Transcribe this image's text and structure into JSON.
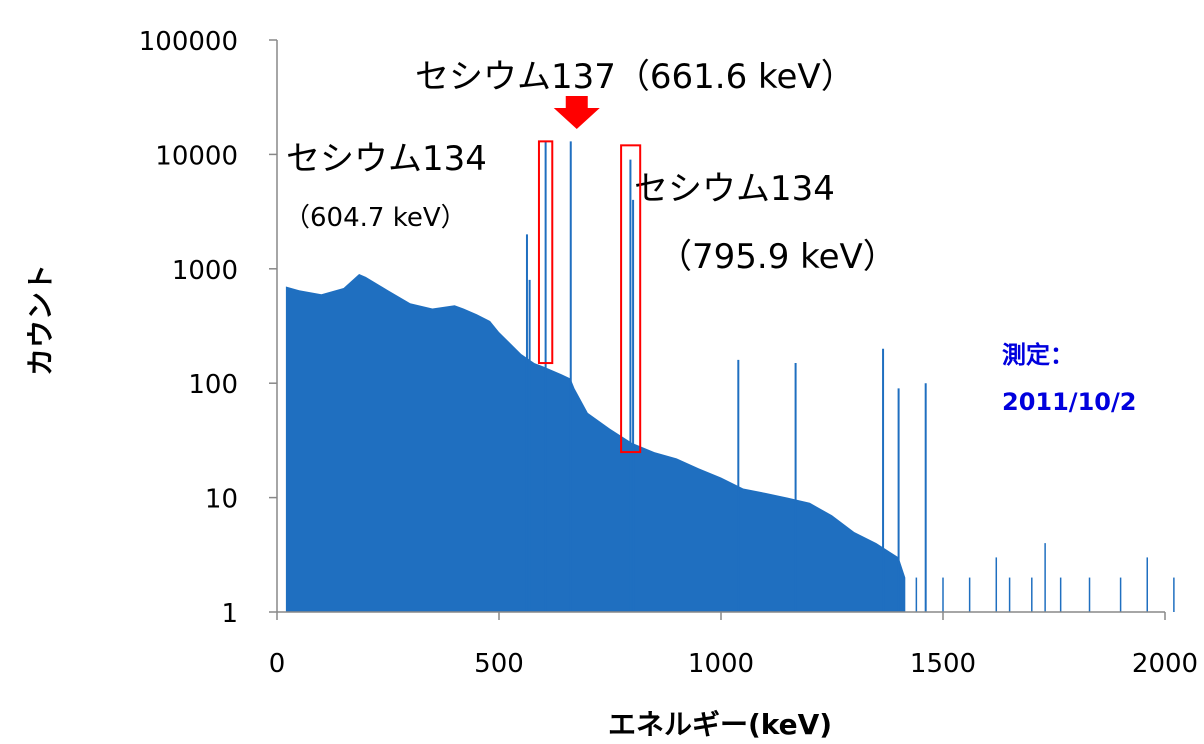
{
  "colors": {
    "spectrum": "#1f6fc0",
    "highlight": "#ff0000",
    "note": "#0000dd",
    "axis": "#888888"
  },
  "chart_data": {
    "type": "bar",
    "xlabel": "エネルギー(keV)",
    "ylabel": "カウント",
    "xlim": [
      0,
      2000
    ],
    "ylim": [
      1,
      100000
    ],
    "yscale": "log",
    "x_ticks": [
      0,
      500,
      1000,
      1500,
      2000
    ],
    "y_ticks": [
      1,
      10,
      100,
      1000,
      10000,
      100000
    ],
    "x_tick_labels": [
      "0",
      "500",
      "1000",
      "1500",
      "2000"
    ],
    "y_tick_labels": [
      "1",
      "10",
      "100",
      "1000",
      "10000",
      "100000"
    ],
    "grid": false,
    "continuum_envelope": [
      [
        20,
        700
      ],
      [
        50,
        650
      ],
      [
        100,
        600
      ],
      [
        150,
        680
      ],
      [
        185,
        900
      ],
      [
        200,
        850
      ],
      [
        250,
        650
      ],
      [
        300,
        500
      ],
      [
        350,
        450
      ],
      [
        400,
        480
      ],
      [
        420,
        450
      ],
      [
        450,
        400
      ],
      [
        480,
        350
      ],
      [
        500,
        280
      ],
      [
        550,
        180
      ],
      [
        580,
        150
      ],
      [
        600,
        140
      ],
      [
        640,
        120
      ],
      [
        661,
        110
      ],
      [
        670,
        90
      ],
      [
        700,
        55
      ],
      [
        750,
        40
      ],
      [
        800,
        30
      ],
      [
        850,
        25
      ],
      [
        900,
        22
      ],
      [
        950,
        18
      ],
      [
        1000,
        15
      ],
      [
        1050,
        12
      ],
      [
        1100,
        11
      ],
      [
        1150,
        10
      ],
      [
        1200,
        9
      ],
      [
        1250,
        7
      ],
      [
        1300,
        5
      ],
      [
        1350,
        4
      ],
      [
        1400,
        3
      ],
      [
        1415,
        2
      ]
    ],
    "peaks": [
      {
        "x": 563,
        "y": 2000
      },
      {
        "x": 569,
        "y": 800
      },
      {
        "x": 605,
        "y": 13000
      },
      {
        "x": 661.6,
        "y": 13000
      },
      {
        "x": 796,
        "y": 9000
      },
      {
        "x": 802,
        "y": 4000
      },
      {
        "x": 1039,
        "y": 160
      },
      {
        "x": 1168,
        "y": 150
      },
      {
        "x": 1365,
        "y": 200
      },
      {
        "x": 1400,
        "y": 90
      },
      {
        "x": 1461,
        "y": 100
      }
    ],
    "tail_spikes": [
      {
        "x": 1440,
        "y": 2
      },
      {
        "x": 1500,
        "y": 2
      },
      {
        "x": 1560,
        "y": 2
      },
      {
        "x": 1620,
        "y": 3
      },
      {
        "x": 1650,
        "y": 2
      },
      {
        "x": 1700,
        "y": 2
      },
      {
        "x": 1730,
        "y": 4
      },
      {
        "x": 1765,
        "y": 2
      },
      {
        "x": 1830,
        "y": 2
      },
      {
        "x": 1900,
        "y": 2
      },
      {
        "x": 1960,
        "y": 3
      },
      {
        "x": 2020,
        "y": 2
      }
    ],
    "annotations": [
      {
        "id": "cs137",
        "text": "セシウム137（661.6 keV）",
        "arrow_x": 661.6
      },
      {
        "id": "cs134_605",
        "name": "セシウム134",
        "energy": "（604.7 keV）",
        "box_x": [
          590,
          620
        ],
        "box_y": [
          150,
          13000
        ]
      },
      {
        "id": "cs134_796",
        "name": "セシウム134",
        "energy": "（795.9 keV）",
        "box_x": [
          775,
          818
        ],
        "box_y": [
          25,
          12000
        ]
      }
    ],
    "note": {
      "line1": "測定：",
      "line2": "2011/10/2"
    }
  }
}
